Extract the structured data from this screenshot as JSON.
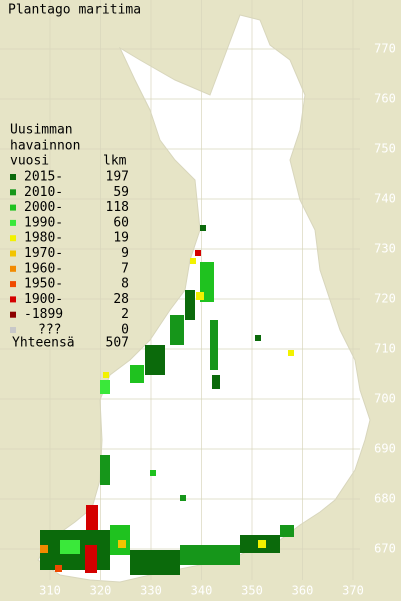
{
  "title": "Plantago maritima",
  "legend": {
    "heading": [
      "Uusimman",
      "havainnon"
    ],
    "columns": [
      "vuosi",
      "lkm"
    ],
    "rows": [
      {
        "label": "2015-",
        "count": 197,
        "color": "#0b6a0b"
      },
      {
        "label": "2010-",
        "count": 59,
        "color": "#16961a"
      },
      {
        "label": "2000-",
        "count": 118,
        "color": "#1fc21f"
      },
      {
        "label": "1990-",
        "count": 60,
        "color": "#3ae83a"
      },
      {
        "label": "1980-",
        "count": 19,
        "color": "#f2f200"
      },
      {
        "label": "1970-",
        "count": 9,
        "color": "#f2c400"
      },
      {
        "label": "1960-",
        "count": 7,
        "color": "#f28a00"
      },
      {
        "label": "1950-",
        "count": 8,
        "color": "#f04a00"
      },
      {
        "label": "1900-",
        "count": 28,
        "color": "#d40000"
      },
      {
        "label": "-1899",
        "count": 2,
        "color": "#8c0000"
      },
      {
        "label": "???",
        "count": 0,
        "color": "#c8c8c8"
      }
    ],
    "total": {
      "label": "Yhteensä",
      "count": 507
    }
  },
  "grid": {
    "x_labels": [
      "310",
      "320",
      "330",
      "340",
      "350",
      "360",
      "370"
    ],
    "y_labels": [
      "770",
      "760",
      "750",
      "740",
      "730",
      "720",
      "710",
      "700",
      "690",
      "680",
      "670"
    ]
  }
}
